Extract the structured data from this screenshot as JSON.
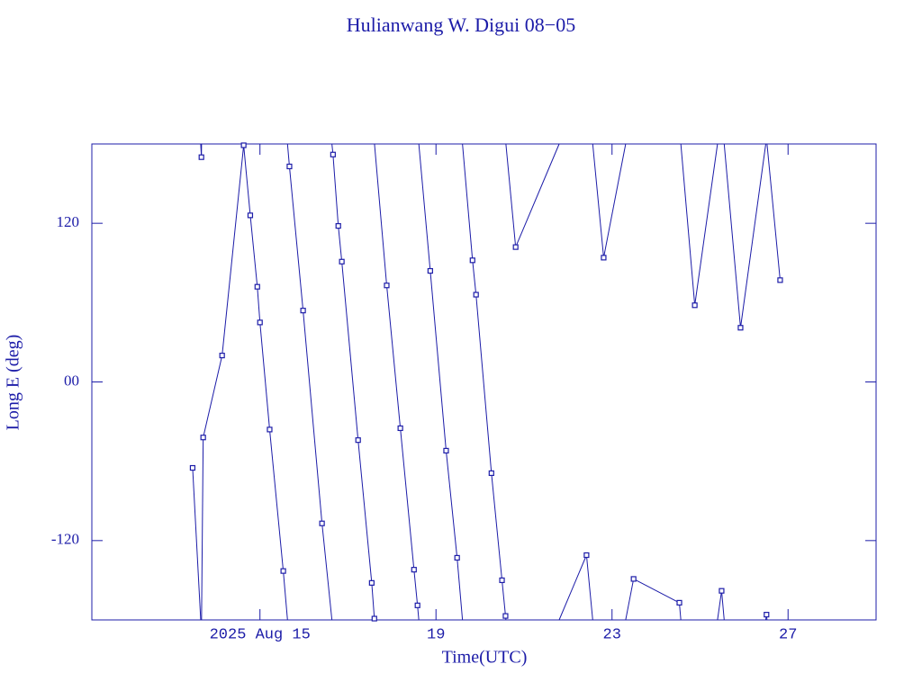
{
  "chart_data": {
    "type": "line",
    "title": "Hulianwang W. Digui 08−05",
    "x_label": "Time(UTC)",
    "y_label": "Long E (deg)",
    "xlim": [
      11.18,
      29.0
    ],
    "xticks": [
      {
        "value": 15,
        "label": "2025 Aug 15"
      },
      19,
      23,
      27
    ],
    "ylim": [
      -180,
      180
    ],
    "yticks": [
      -120,
      {
        "value": 0,
        "label": "00"
      },
      120
    ],
    "series": [
      {
        "name": "Long E",
        "color": "#1c1ca8",
        "x": [
          13.47,
          13.67,
          13.71,
          14.14,
          14.63,
          14.78,
          14.94,
          15.0,
          15.22,
          15.53,
          15.67,
          15.98,
          16.41,
          16.66,
          16.78,
          16.86,
          17.23,
          17.54,
          17.6,
          17.88,
          18.19,
          18.5,
          18.58,
          18.87,
          19.23,
          19.48,
          19.83,
          19.91,
          20.26,
          20.5,
          20.58,
          20.81,
          22.42,
          22.81,
          23.49,
          24.53,
          24.88,
          25.49,
          25.92,
          26.51,
          26.82
        ],
        "values": [
          -65,
          170,
          -42,
          20,
          179,
          126,
          72,
          45,
          -36,
          -143,
          163,
          54,
          -107,
          172,
          118,
          91,
          -44,
          -152,
          -179,
          73,
          -35,
          -142,
          -169,
          84,
          -52,
          -133,
          92,
          66,
          -69,
          -150,
          -177,
          102,
          -131,
          94,
          -149,
          -167,
          58,
          -158,
          41,
          -176,
          77
        ]
      }
    ]
  }
}
